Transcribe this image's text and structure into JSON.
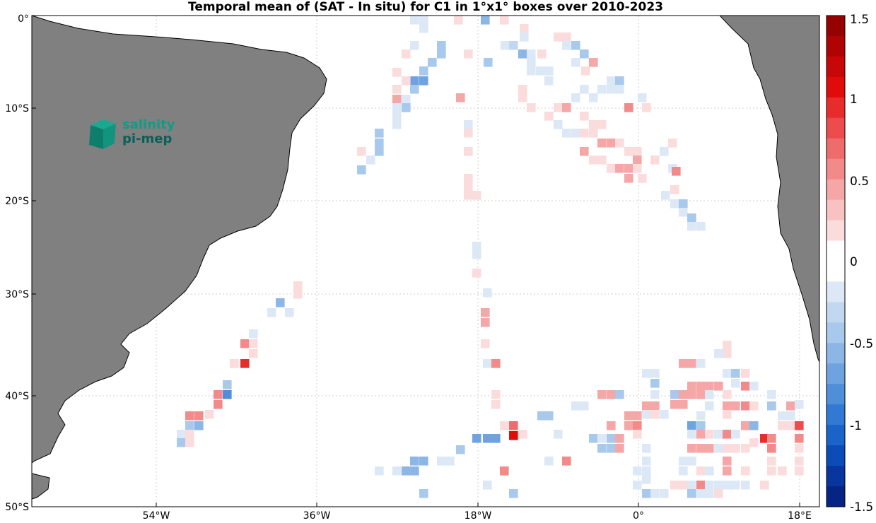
{
  "title": "Temporal mean of (SAT - In situ) for C1 in 1°x1° boxes over 2010-2023",
  "logo": {
    "line1": "salinity",
    "line2": "pi-mep"
  },
  "axes": {
    "lat_labels": [
      "0°",
      "10°S",
      "20°S",
      "30°S",
      "40°S",
      "50°S"
    ],
    "lon_labels": [
      "54°W",
      "36°W",
      "18°W",
      "0°",
      "18°E"
    ]
  },
  "colorbar": {
    "labels": [
      "1.5",
      "1",
      "0.5",
      "0",
      "-0.5",
      "-1",
      "-1.5"
    ],
    "range": [
      -1.5,
      1.5
    ]
  },
  "colors": {
    "land": "#808080",
    "coast": "#000000",
    "grid": "#c8c8c8"
  }
}
